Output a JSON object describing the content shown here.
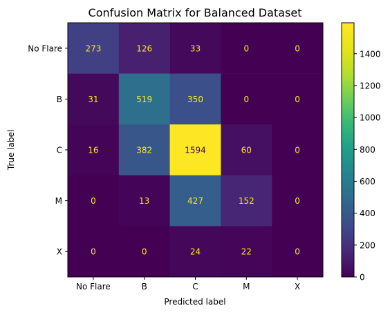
{
  "chart_data": {
    "type": "heatmap",
    "title": "Confusion Matrix for Balanced Dataset",
    "xlabel": "Predicted label",
    "ylabel": "True label",
    "row_labels": [
      "No Flare",
      "B",
      "C",
      "M",
      "X"
    ],
    "col_labels": [
      "No Flare",
      "B",
      "C",
      "M",
      "X"
    ],
    "values": [
      [
        273,
        126,
        33,
        0,
        0
      ],
      [
        31,
        519,
        350,
        0,
        0
      ],
      [
        16,
        382,
        1594,
        60,
        0
      ],
      [
        0,
        13,
        427,
        152,
        0
      ],
      [
        0,
        0,
        24,
        22,
        0
      ]
    ],
    "colormap": "viridis",
    "colorbar": {
      "range": [
        0,
        1594
      ],
      "ticks": [
        0,
        200,
        400,
        600,
        800,
        1000,
        1200,
        1400
      ]
    },
    "annotation_colors": {
      "low": "#fde725",
      "high": "#440154"
    },
    "grid": false
  }
}
